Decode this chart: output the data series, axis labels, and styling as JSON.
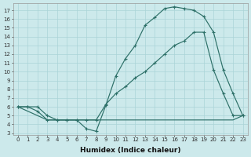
{
  "background_color": "#cce9eb",
  "grid_color": "#aad4d7",
  "line_color": "#2d7068",
  "xlabel": "Humidex (Indice chaleur)",
  "xlim": [
    -0.5,
    23.5
  ],
  "ylim": [
    2.8,
    17.8
  ],
  "yticks": [
    3,
    4,
    5,
    6,
    7,
    8,
    9,
    10,
    11,
    12,
    13,
    14,
    15,
    16,
    17
  ],
  "xticks": [
    0,
    1,
    2,
    3,
    4,
    5,
    6,
    7,
    8,
    9,
    10,
    11,
    12,
    13,
    14,
    15,
    16,
    17,
    18,
    19,
    20,
    21,
    22,
    23
  ],
  "curve1_x": [
    0,
    1,
    2,
    3,
    4,
    5,
    6,
    7,
    8,
    9,
    10,
    11,
    12,
    13,
    14,
    15,
    16,
    17,
    18,
    19,
    20,
    21,
    22,
    23
  ],
  "curve1_y": [
    6,
    6,
    6,
    5,
    4.5,
    4.5,
    4.5,
    3.5,
    3.2,
    6.2,
    9.5,
    11.5,
    13.0,
    15.3,
    16.2,
    17.2,
    17.4,
    17.2,
    17.0,
    16.3,
    14.5,
    10.2,
    7.5,
    5.0
  ],
  "curve2_x": [
    0,
    2,
    3,
    4,
    5,
    6,
    7,
    9,
    10,
    11,
    12,
    13,
    14,
    15,
    16,
    17,
    18,
    19,
    20,
    21,
    22,
    23
  ],
  "curve2_y": [
    6,
    5,
    4.5,
    4.5,
    4.5,
    4.5,
    4.5,
    4.5,
    4.5,
    4.5,
    4.5,
    4.5,
    4.5,
    4.5,
    4.5,
    4.5,
    4.5,
    4.5,
    4.5,
    4.5,
    4.5,
    5.0
  ],
  "curve3_x": [
    0,
    1,
    2,
    3,
    4,
    5,
    6,
    7,
    8,
    9,
    10,
    11,
    12,
    13,
    14,
    15,
    16,
    17,
    18,
    19,
    20,
    21,
    22,
    23
  ],
  "curve3_y": [
    6,
    6,
    5.5,
    4.5,
    4.5,
    4.5,
    4.5,
    4.5,
    4.5,
    6.3,
    7.5,
    8.3,
    9.3,
    10.0,
    11.0,
    12.0,
    13.0,
    13.5,
    14.5,
    14.5,
    10.2,
    7.5,
    5.0,
    5.0
  ]
}
